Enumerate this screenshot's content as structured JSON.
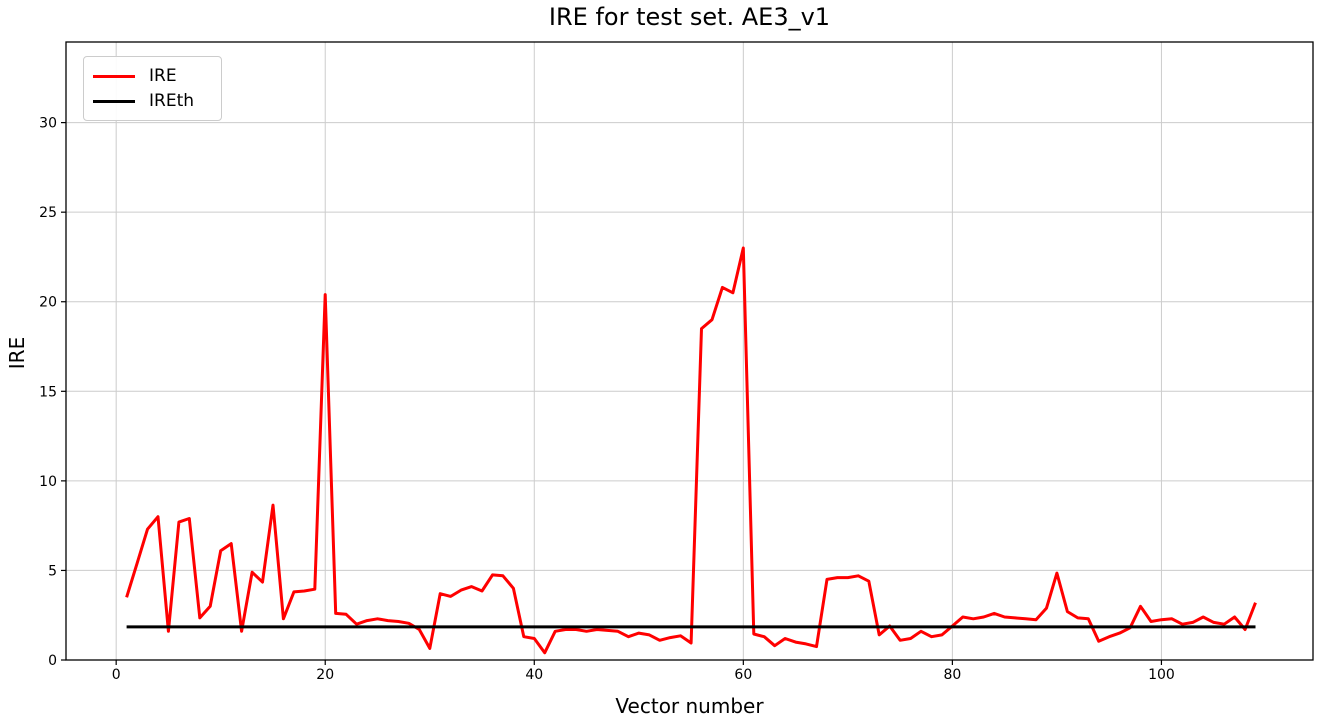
{
  "figure": {
    "title": "IRE for test set. AE3_v1",
    "xlabel": "Vector number",
    "ylabel": "IRE"
  },
  "legend": {
    "entries": [
      {
        "label": "IRE",
        "color": "#ff0000"
      },
      {
        "label": "IREth",
        "color": "#000000"
      }
    ]
  },
  "chart_data": {
    "type": "line",
    "title": "IRE for test set. AE3_v1",
    "xlabel": "Vector number",
    "ylabel": "IRE",
    "xlim": [
      -4.8,
      114.5
    ],
    "ylim": [
      0,
      34.5
    ],
    "xticks": [
      0,
      20,
      40,
      60,
      80,
      100
    ],
    "yticks": [
      0,
      5,
      10,
      15,
      20,
      25,
      30
    ],
    "grid": true,
    "grid_color": "#cccccc",
    "legend_position": "upper left",
    "series": [
      {
        "name": "IRE",
        "color": "#ff0000",
        "linewidth": 3,
        "x_start": 1,
        "values": [
          3.5,
          5.4,
          7.3,
          8.0,
          1.6,
          7.7,
          7.9,
          2.35,
          3.0,
          6.1,
          6.5,
          1.6,
          4.9,
          4.35,
          8.65,
          2.3,
          3.8,
          3.85,
          3.95,
          20.4,
          2.6,
          2.55,
          2.0,
          2.2,
          2.3,
          2.2,
          2.15,
          2.05,
          1.7,
          0.65,
          3.7,
          3.55,
          3.9,
          4.1,
          3.85,
          4.75,
          4.7,
          4.0,
          1.3,
          1.2,
          0.4,
          1.6,
          1.7,
          1.7,
          1.6,
          1.7,
          1.65,
          1.6,
          1.3,
          1.5,
          1.4,
          1.1,
          1.25,
          1.35,
          0.95,
          18.5,
          19.0,
          20.8,
          20.5,
          23.0,
          1.45,
          1.3,
          0.8,
          1.2,
          1.0,
          0.9,
          0.75,
          4.5,
          4.6,
          4.6,
          4.7,
          4.4,
          1.4,
          1.9,
          1.1,
          1.2,
          1.6,
          1.3,
          1.4,
          1.9,
          2.4,
          2.3,
          2.4,
          2.6,
          2.4,
          2.35,
          2.3,
          2.25,
          2.9,
          4.85,
          2.7,
          2.35,
          2.3,
          1.05,
          1.3,
          1.5,
          1.8,
          3.0,
          2.15,
          2.25,
          2.3,
          2.0,
          2.1,
          2.4,
          2.1,
          2.0,
          2.4,
          1.7,
          3.2
        ]
      },
      {
        "name": "IREth",
        "color": "#000000",
        "linewidth": 3,
        "x": [
          1,
          109
        ],
        "values": [
          1.85,
          1.85
        ]
      }
    ]
  }
}
